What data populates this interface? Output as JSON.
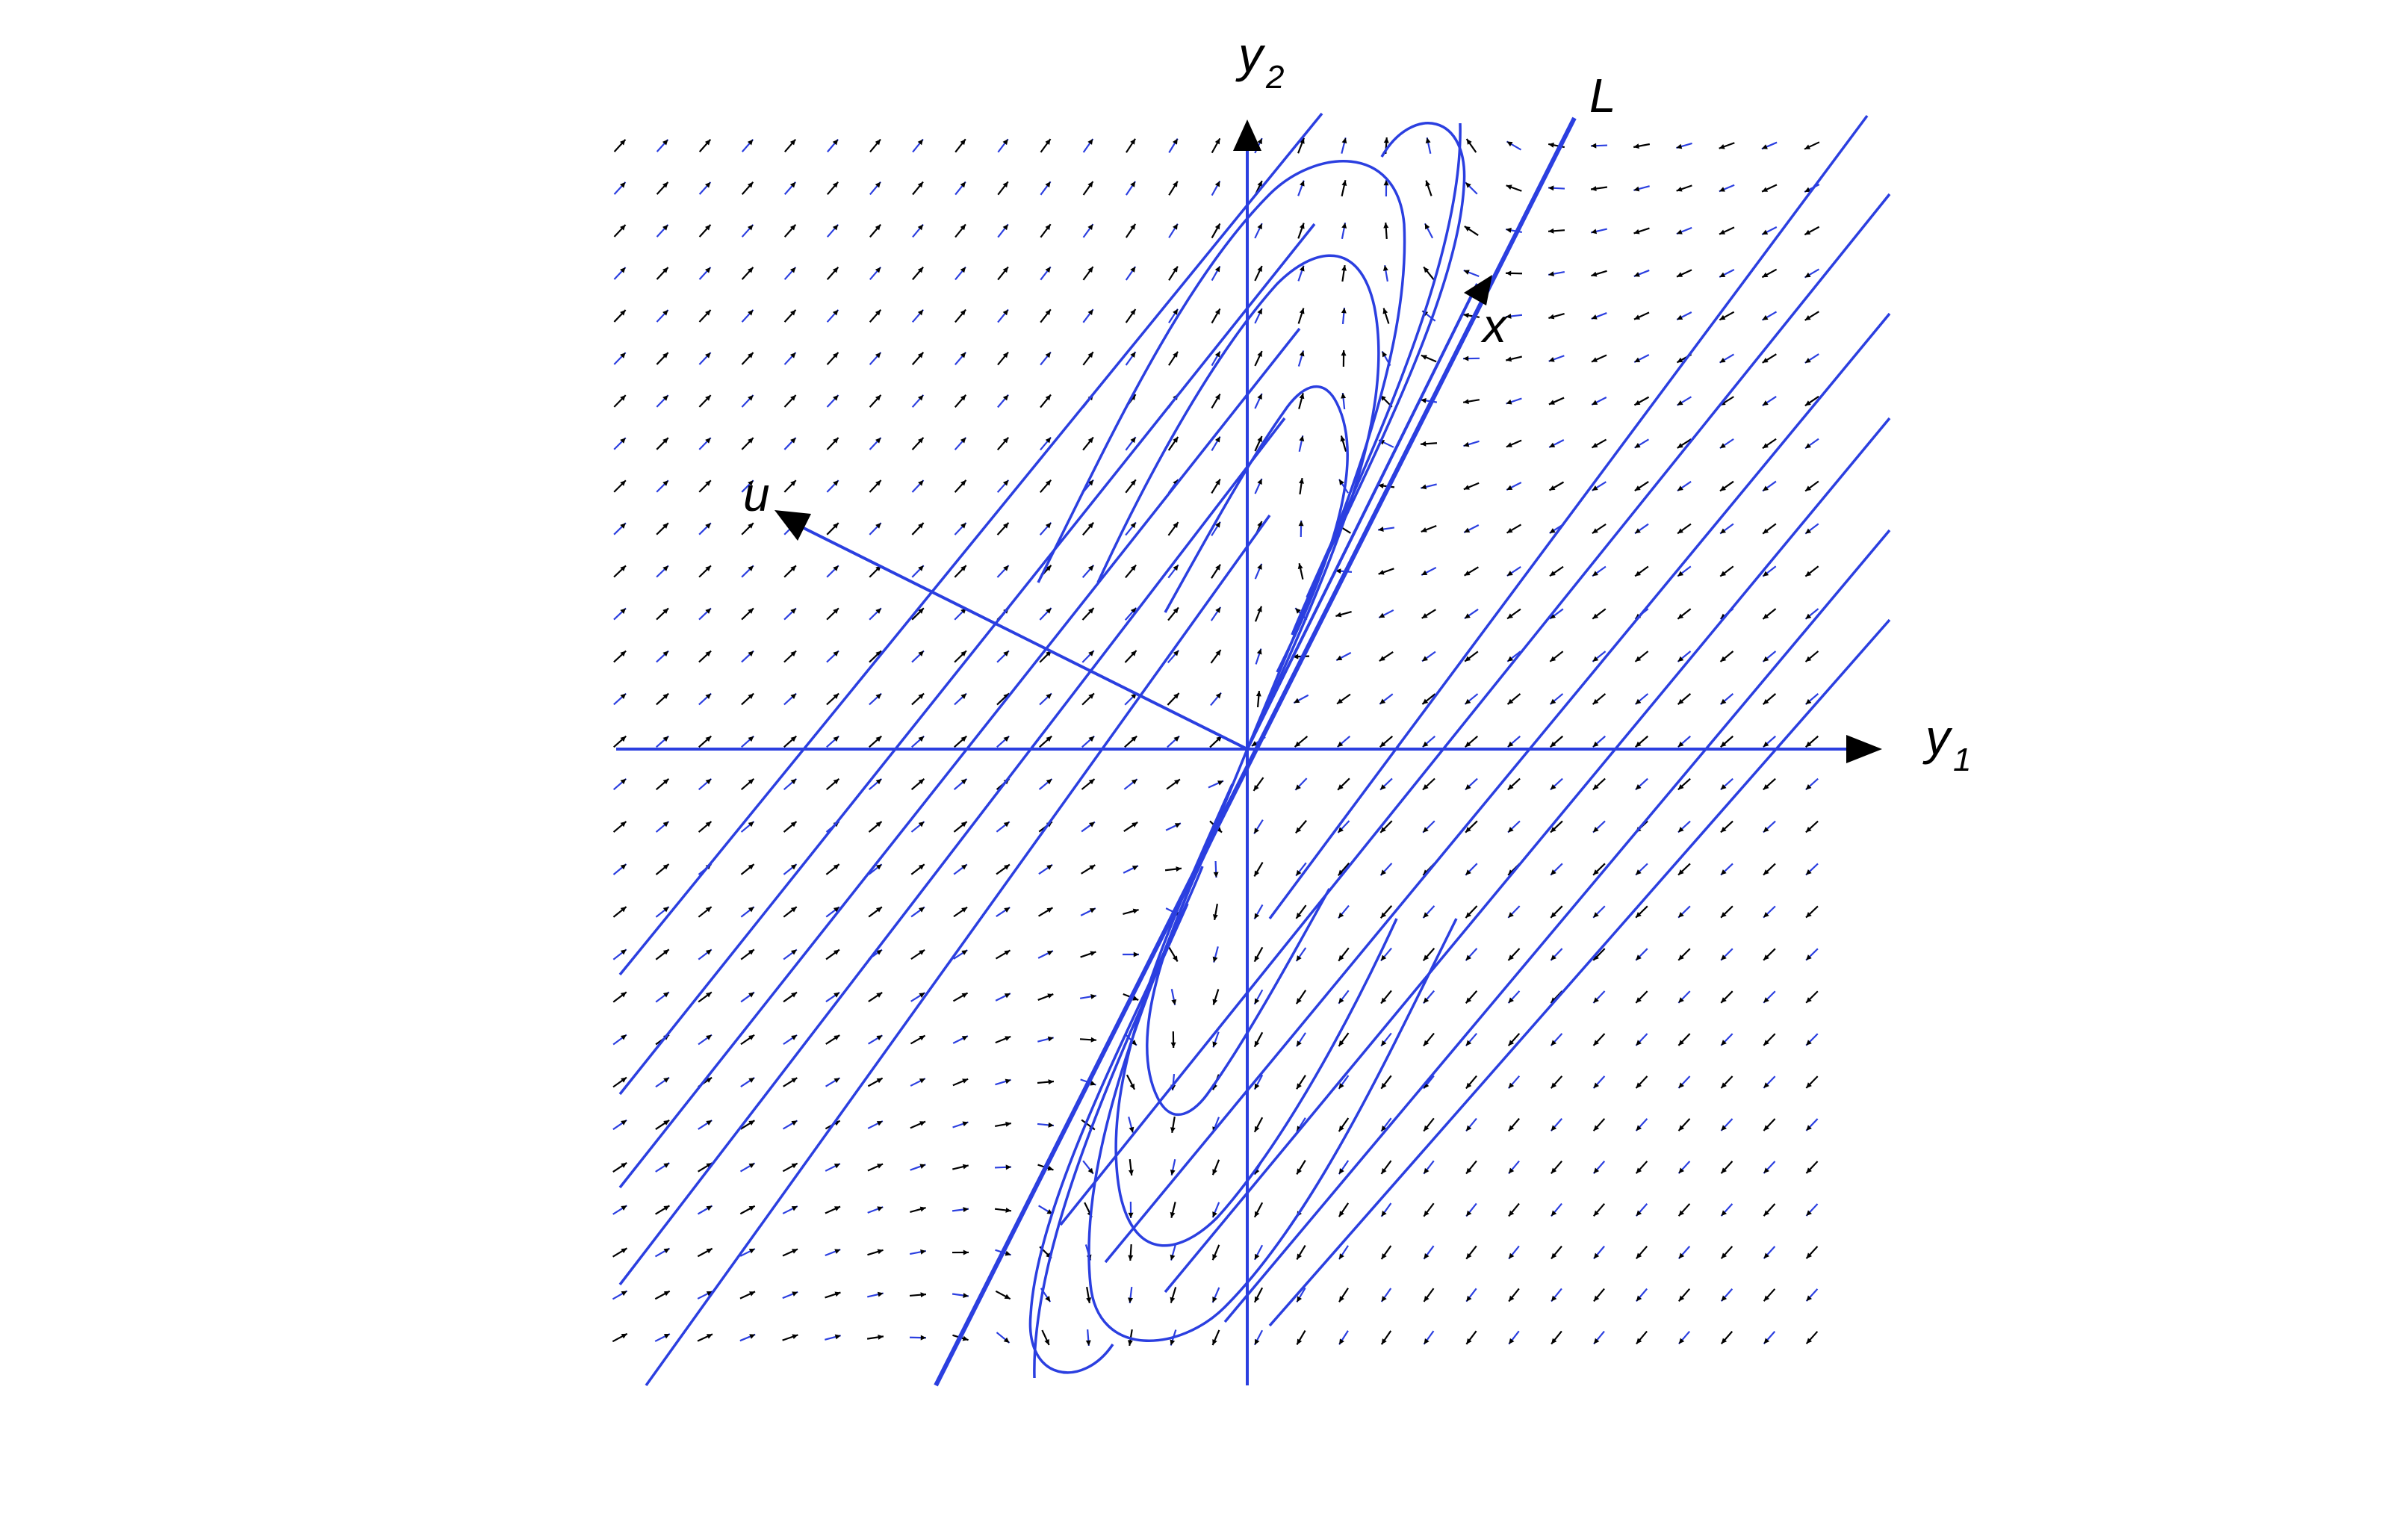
{
  "diagram": {
    "axes": {
      "horizontal": {
        "label": "y",
        "subscript": "1"
      },
      "vertical": {
        "label": "y",
        "subscript": "2"
      }
    },
    "line_label": "L",
    "vector_labels": {
      "x": "x",
      "u": "u"
    },
    "colors": {
      "curves": "#2b3fe0",
      "axes": "#2b3fe0",
      "field_black": "#000000",
      "field_blue": "#2b3fe0",
      "arrowheads": "#000000",
      "background": "#ffffff"
    }
  }
}
